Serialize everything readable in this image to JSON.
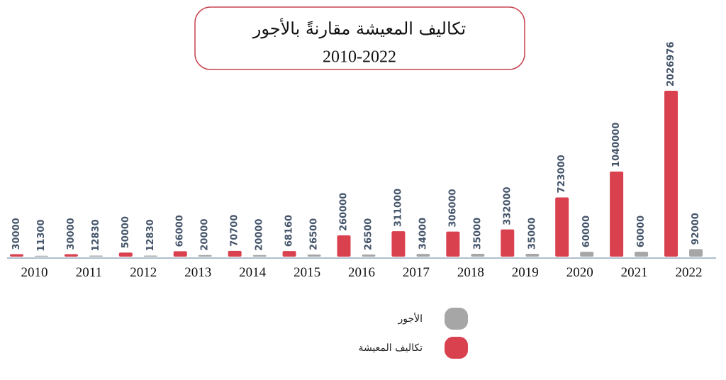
{
  "chart_data": {
    "type": "bar",
    "title": "تكاليف المعيشة مقارنةً بالأجور",
    "subtitle": "2010-2022",
    "categories": [
      "2010",
      "2011",
      "2012",
      "2013",
      "2014",
      "2015",
      "2016",
      "2017",
      "2018",
      "2019",
      "2020",
      "2021",
      "2022"
    ],
    "series": [
      {
        "name": "تكاليف المعيشة",
        "color": "#d9414f",
        "values": [
          30000,
          30000,
          50000,
          66000,
          70700,
          68160,
          260000,
          311000,
          306000,
          332000,
          723000,
          1040000,
          2026976
        ]
      },
      {
        "name": "الأجور",
        "color": "#a6a6a6",
        "values": [
          11300,
          12830,
          12830,
          20000,
          20000,
          26500,
          26500,
          34000,
          35000,
          35000,
          60000,
          60000,
          92000
        ]
      }
    ]
  }
}
